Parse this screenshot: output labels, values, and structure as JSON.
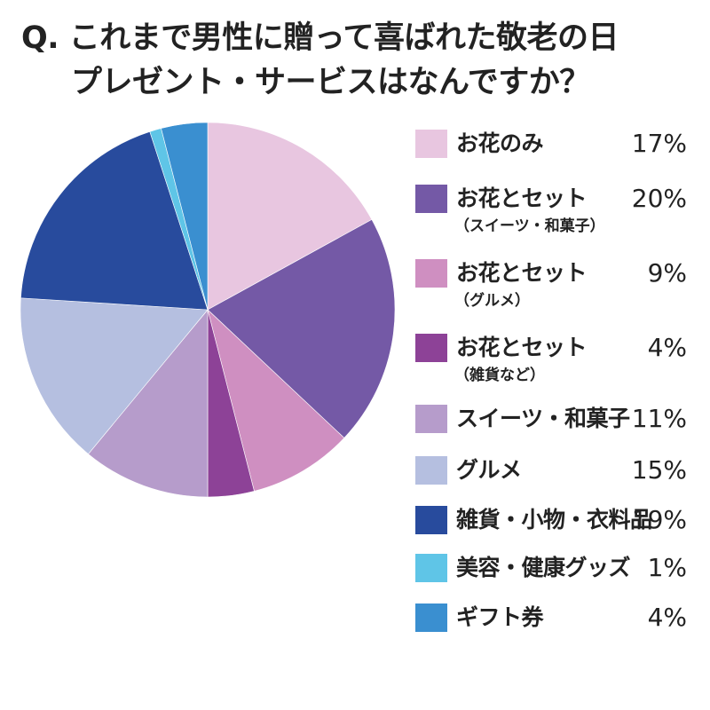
{
  "title": {
    "line1": "Q. これまで男性に贈って喜ばれた敬老の日",
    "line2": "プレゼント・サービスはなんですか？"
  },
  "chart_data": {
    "type": "pie",
    "start_angle": "12 o'clock",
    "direction": "clockwise",
    "slices": [
      {
        "label": "お花のみ",
        "sublabel": "",
        "value": 17,
        "value_text": "17%",
        "color": "#e8c6e0"
      },
      {
        "label": "お花とセット",
        "sublabel": "（スイーツ・和菓子）",
        "value": 20,
        "value_text": "20%",
        "color": "#7459a6"
      },
      {
        "label": "お花とセット",
        "sublabel": "（グルメ）",
        "value": 9,
        "value_text": "9%",
        "color": "#cf8fc1"
      },
      {
        "label": "お花とセット",
        "sublabel": "（雑貨など）",
        "value": 4,
        "value_text": "4%",
        "color": "#8d4297"
      },
      {
        "label": "スイーツ・和菓子",
        "sublabel": "",
        "value": 11,
        "value_text": "11%",
        "color": "#b69ccb"
      },
      {
        "label": "グルメ",
        "sublabel": "",
        "value": 15,
        "value_text": "15%",
        "color": "#b5bfe0"
      },
      {
        "label": "雑貨・小物・衣料品",
        "sublabel": "",
        "value": 19,
        "value_text": "19%",
        "color": "#284b9d"
      },
      {
        "label": "美容・健康グッズ",
        "sublabel": "",
        "value": 1,
        "value_text": "1%",
        "color": "#5fc5e7"
      },
      {
        "label": "ギフト券",
        "sublabel": "",
        "value": 4,
        "value_text": "4%",
        "color": "#3a8fd0"
      }
    ]
  }
}
